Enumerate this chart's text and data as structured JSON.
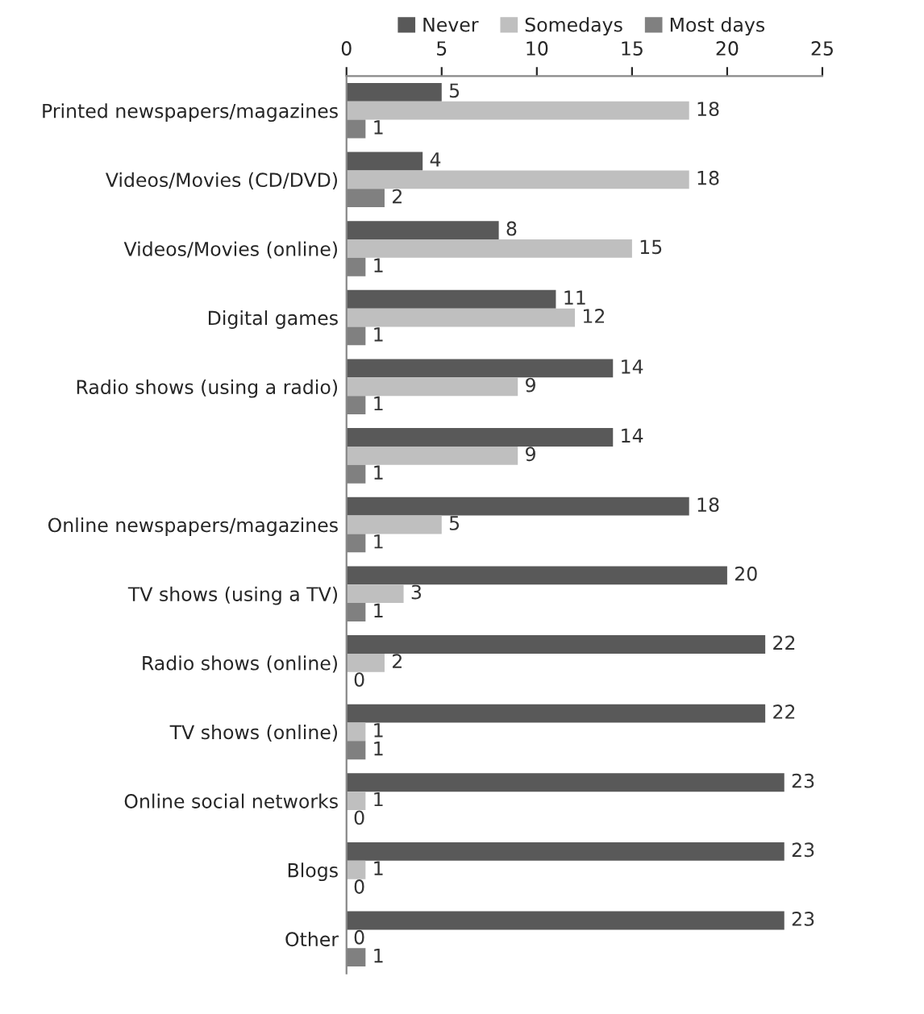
{
  "chart_data": {
    "type": "bar",
    "orientation": "horizontal",
    "categories": [
      "Printed newspapers/magazines",
      "Videos/Movies (CD/DVD)",
      "Videos/Movies (online)",
      "Digital games",
      "Radio shows (using a radio)",
      null,
      "Online newspapers/magazines",
      "TV shows (using a TV)",
      "Radio shows (online)",
      "TV shows (online)",
      "Online social networks",
      "Blogs",
      "Other"
    ],
    "series": [
      {
        "name": "Never",
        "color": "#595959",
        "values": [
          5,
          4,
          8,
          11,
          14,
          14,
          18,
          20,
          22,
          22,
          23,
          23,
          23
        ]
      },
      {
        "name": "Somedays",
        "color": "#bfbfbf",
        "values": [
          18,
          18,
          15,
          12,
          9,
          9,
          5,
          3,
          2,
          1,
          1,
          1,
          0
        ]
      },
      {
        "name": "Most days",
        "color": "#808080",
        "values": [
          1,
          2,
          1,
          1,
          1,
          1,
          1,
          1,
          0,
          1,
          0,
          0,
          1
        ]
      }
    ],
    "xlim": [
      0,
      25
    ],
    "xticks": [
      0,
      5,
      10,
      15,
      20,
      25
    ],
    "data_labels": true,
    "legend": "top",
    "grid": false
  }
}
